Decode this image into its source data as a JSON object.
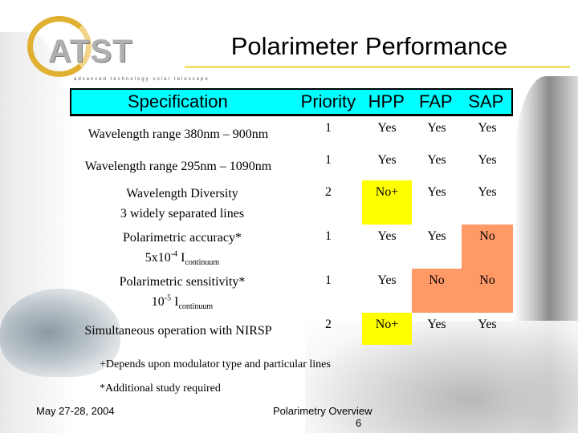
{
  "logo": {
    "text": "ATST",
    "subtitle": "advanced technology solar telescope"
  },
  "title": "Polarimeter Performance",
  "table": {
    "headers": {
      "spec": "Specification",
      "priority": "Priority",
      "hpp": "HPP",
      "fap": "FAP",
      "sap": "SAP"
    },
    "rows": [
      {
        "spec": "Wavelength range 380nm – 900nm",
        "priority": "1",
        "hpp": "Yes",
        "fap": "Yes",
        "sap": "Yes"
      },
      {
        "spec": "Wavelength range 295nm – 1090nm",
        "priority": "1",
        "hpp": "Yes",
        "fap": "Yes",
        "sap": "Yes"
      },
      {
        "spec": "Wavelength Diversity",
        "spec2": "3 widely separated lines",
        "priority": "2",
        "hpp": "No+",
        "fap": "Yes",
        "sap": "Yes"
      },
      {
        "spec": "Polarimetric accuracy*",
        "spec2_base": "5x10",
        "spec2_sup": "-4",
        "spec2_i": "I",
        "spec2_sub": "continuum",
        "priority": "1",
        "hpp": "Yes",
        "fap": "Yes",
        "sap": "No"
      },
      {
        "spec": "Polarimetric sensitivity*",
        "spec2_base": "10",
        "spec2_sup": "-5",
        "spec2_i": "I",
        "spec2_sub": "continuum",
        "priority": "1",
        "hpp": "Yes",
        "fap": "No",
        "sap": "No"
      },
      {
        "spec": "Simultaneous operation with NIRSP",
        "priority": "2",
        "hpp": "No+",
        "fap": "Yes",
        "sap": "Yes"
      }
    ]
  },
  "notes": {
    "note1": "+Depends upon modulator type and particular lines",
    "note2": "*Additional study required"
  },
  "footer": {
    "date": "May 27-28, 2004",
    "event": "Polarimetry Overview",
    "page": "6"
  },
  "colors": {
    "header_bg": "#00ffff",
    "highlight_yellow": "#ffff00",
    "highlight_salmon": "#ff9966",
    "title_rule": "#ece270"
  }
}
